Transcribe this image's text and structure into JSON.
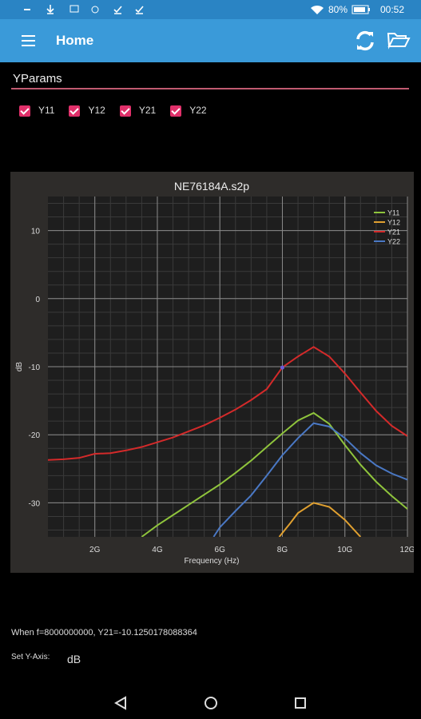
{
  "status_bar": {
    "battery": "80%",
    "time": "00:52"
  },
  "app_bar": {
    "title": "Home"
  },
  "section": {
    "title": "YParams"
  },
  "checkboxes": [
    "Y11",
    "Y12",
    "Y21",
    "Y22"
  ],
  "chart_data": {
    "type": "line",
    "title": "NE76184A.s2p",
    "x_label": "Frequency (Hz)",
    "y_label": "dB",
    "xlim": [
      500000000,
      12000000000
    ],
    "xticks": [
      {
        "value": 2000000000,
        "label": "2G"
      },
      {
        "value": 4000000000,
        "label": "4G"
      },
      {
        "value": 6000000000,
        "label": "6G"
      },
      {
        "value": 8000000000,
        "label": "8G"
      },
      {
        "value": 10000000000,
        "label": "10G"
      },
      {
        "value": 12000000000,
        "label": "12G"
      }
    ],
    "ylim": [
      -35,
      15
    ],
    "yticks": [
      -30,
      -20,
      -10,
      0,
      10
    ],
    "grid": true,
    "minor_grid": true,
    "legend": "top-right",
    "series": [
      {
        "name": "Y11",
        "color": "#8fc43c",
        "x": [
          3500000000,
          4000000000,
          4500000000,
          5000000000,
          5500000000,
          6000000000,
          6500000000,
          7000000000,
          7500000000,
          8000000000,
          8500000000,
          9000000000,
          9500000000,
          10000000000,
          10500000000,
          11000000000,
          11500000000,
          12000000000
        ],
        "values": [
          -35,
          -33.3,
          -31.8,
          -30.3,
          -28.8,
          -27.3,
          -25.6,
          -23.8,
          -21.8,
          -19.8,
          -17.9,
          -16.8,
          -18.4,
          -21.5,
          -24.4,
          -26.9,
          -29,
          -30.9
        ]
      },
      {
        "name": "Y12",
        "color": "#e0a030",
        "x": [
          7900000000,
          8250000000,
          8500000000,
          9000000000,
          9500000000,
          10000000000,
          10500000000
        ],
        "values": [
          -35,
          -33,
          -31.5,
          -30,
          -30.6,
          -32.5,
          -35
        ]
      },
      {
        "name": "Y21",
        "color": "#d42a2a",
        "x": [
          500000000,
          1000000000,
          1500000000,
          2000000000,
          2500000000,
          3000000000,
          3500000000,
          4000000000,
          4500000000,
          5000000000,
          5500000000,
          6000000000,
          6500000000,
          7000000000,
          7500000000,
          8000000000,
          8500000000,
          9000000000,
          9500000000,
          10000000000,
          10500000000,
          11000000000,
          11500000000,
          12000000000
        ],
        "values": [
          -23.7,
          -23.6,
          -23.4,
          -22.8,
          -22.7,
          -22.3,
          -21.8,
          -21.1,
          -20.4,
          -19.5,
          -18.6,
          -17.5,
          -16.3,
          -14.9,
          -13.3,
          -10.1,
          -8.5,
          -7.1,
          -8.5,
          -11,
          -13.8,
          -16.5,
          -18.7,
          -20.2
        ]
      },
      {
        "name": "Y22",
        "color": "#4a78c4",
        "x": [
          5800000000,
          6000000000,
          6500000000,
          7000000000,
          7500000000,
          8000000000,
          8500000000,
          9000000000,
          9500000000,
          10000000000,
          10500000000,
          11000000000,
          11500000000,
          12000000000
        ],
        "values": [
          -35,
          -33.6,
          -31.2,
          -28.9,
          -26,
          -23,
          -20.5,
          -18.3,
          -18.8,
          -20.5,
          -22.7,
          -24.5,
          -25.7,
          -26.6
        ]
      }
    ],
    "marker": {
      "x": 8000000000,
      "y": -10.1250178088364,
      "color": "#6a5cd8"
    }
  },
  "info": "When f=8000000000, Y21=-10.1250178088364",
  "axis_setting": {
    "label": "Set Y-Axis:",
    "value": "dB"
  }
}
